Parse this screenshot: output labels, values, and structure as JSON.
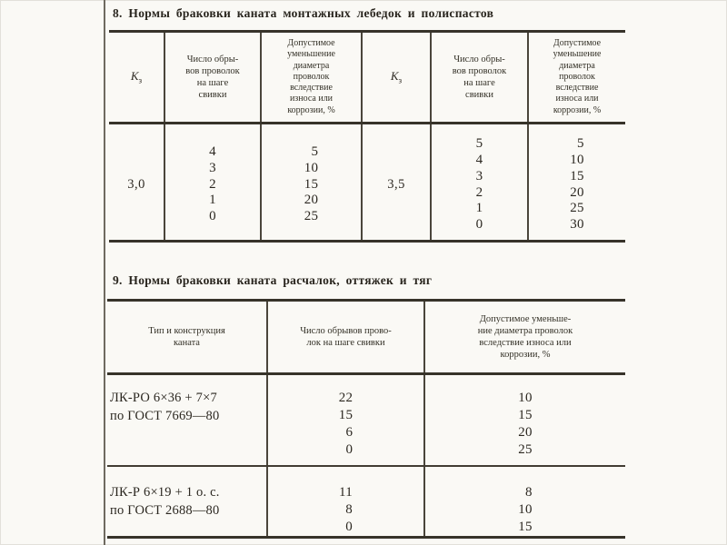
{
  "t8": {
    "title": "8. Нормы браковки каната монтажных лебедок и полиспастов",
    "k_symbol": "K",
    "k_sub": "з",
    "headers": {
      "breaks": "Число обры-\nвов проволок\nна шаге\nсвивки",
      "wear": "Допустимое\nуменьшение\nдиаметра\nпроволок\nвследствие\nизноса или\nкоррозии, %"
    },
    "left": {
      "k": "3,0",
      "breaks": [
        "4",
        "3",
        "2",
        "1",
        "0"
      ],
      "wear": [
        "5",
        "10",
        "15",
        "20",
        "25"
      ]
    },
    "right": {
      "k": "3,5",
      "breaks": [
        "5",
        "4",
        "3",
        "2",
        "1",
        "0"
      ],
      "wear": [
        "5",
        "10",
        "15",
        "20",
        "25",
        "30"
      ]
    }
  },
  "t9": {
    "title": "9. Нормы браковки каната расчалок, оттяжек и тяг",
    "headers": {
      "type": "Тип и конструкция\nканата",
      "breaks": "Число обрывов прово-\nлок на шаге свивки",
      "wear": "Допустимое уменьше-\nние диаметра проволок\nвследствие износа или\nкоррозии, %"
    },
    "rows": [
      {
        "type": "ЛК-РО 6×36 + 7×7\nпо ГОСТ 7669—80",
        "breaks": [
          "22",
          "15",
          "6",
          "0"
        ],
        "wear": [
          "10",
          "15",
          "20",
          "25"
        ]
      },
      {
        "type": "ЛК-Р 6×19 + 1 о. с.\nпо ГОСТ 2688—80",
        "breaks": [
          "11",
          "8",
          "0"
        ],
        "wear": [
          "8",
          "10",
          "15"
        ]
      }
    ]
  }
}
